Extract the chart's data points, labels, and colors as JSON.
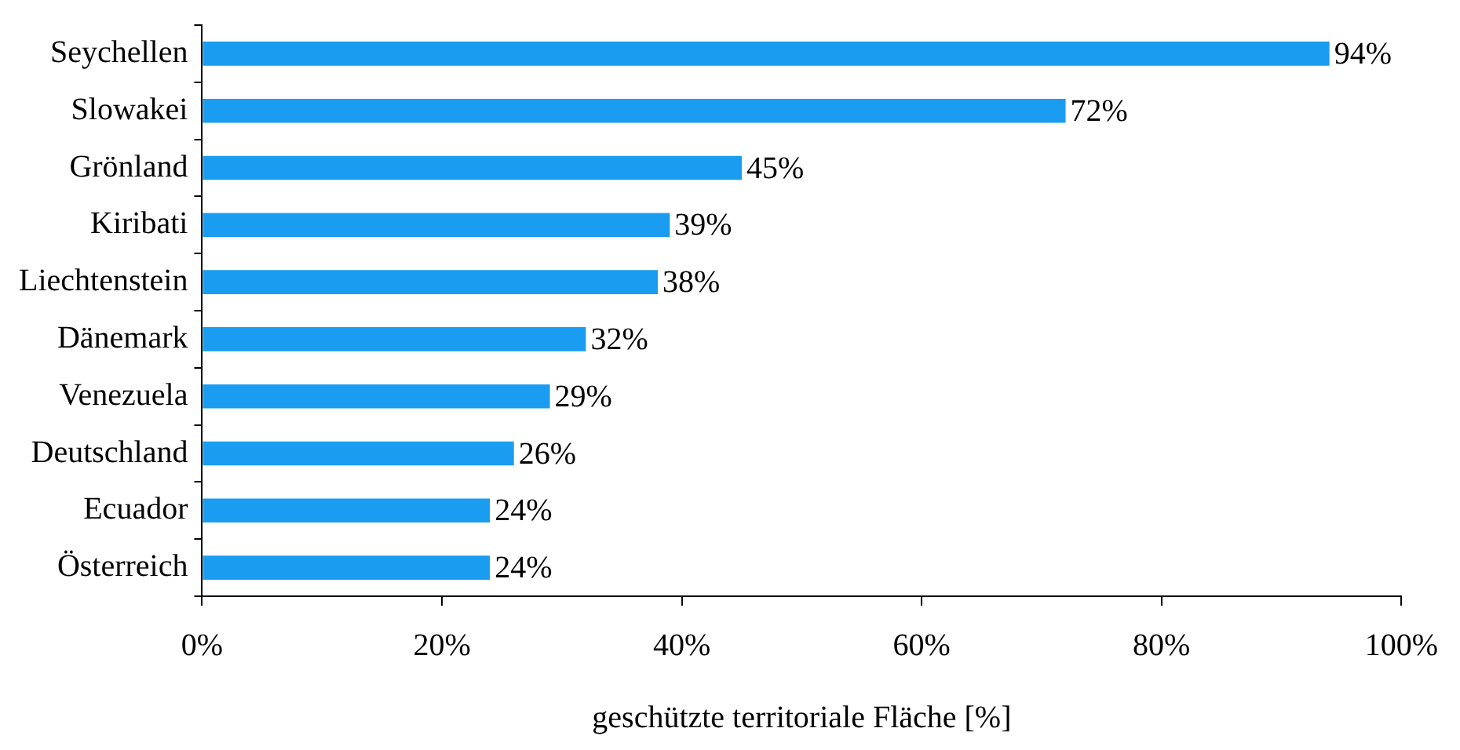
{
  "chart_data": {
    "type": "bar",
    "orientation": "horizontal",
    "xlabel": "geschützte territoriale Fläche [%]",
    "categories": [
      "Seychellen",
      "Slowakei",
      "Grönland",
      "Kiribati",
      "Liechtenstein",
      "Dänemark",
      "Venezuela",
      "Deutschland",
      "Ecuador",
      "Österreich"
    ],
    "values": [
      94,
      72,
      45,
      39,
      38,
      32,
      29,
      26,
      24,
      24
    ],
    "value_labels": [
      "94%",
      "72%",
      "45%",
      "39%",
      "38%",
      "32%",
      "29%",
      "26%",
      "24%",
      "24%"
    ],
    "color": "#1a9cf0",
    "xlim": [
      0,
      100
    ],
    "xticks": [
      {
        "value": 0,
        "label": "0%"
      },
      {
        "value": 20,
        "label": "20%"
      },
      {
        "value": 40,
        "label": "40%"
      },
      {
        "value": 60,
        "label": "60%"
      },
      {
        "value": 80,
        "label": "80%"
      },
      {
        "value": 100,
        "label": "100%"
      }
    ],
    "grid": false,
    "legend": false
  }
}
